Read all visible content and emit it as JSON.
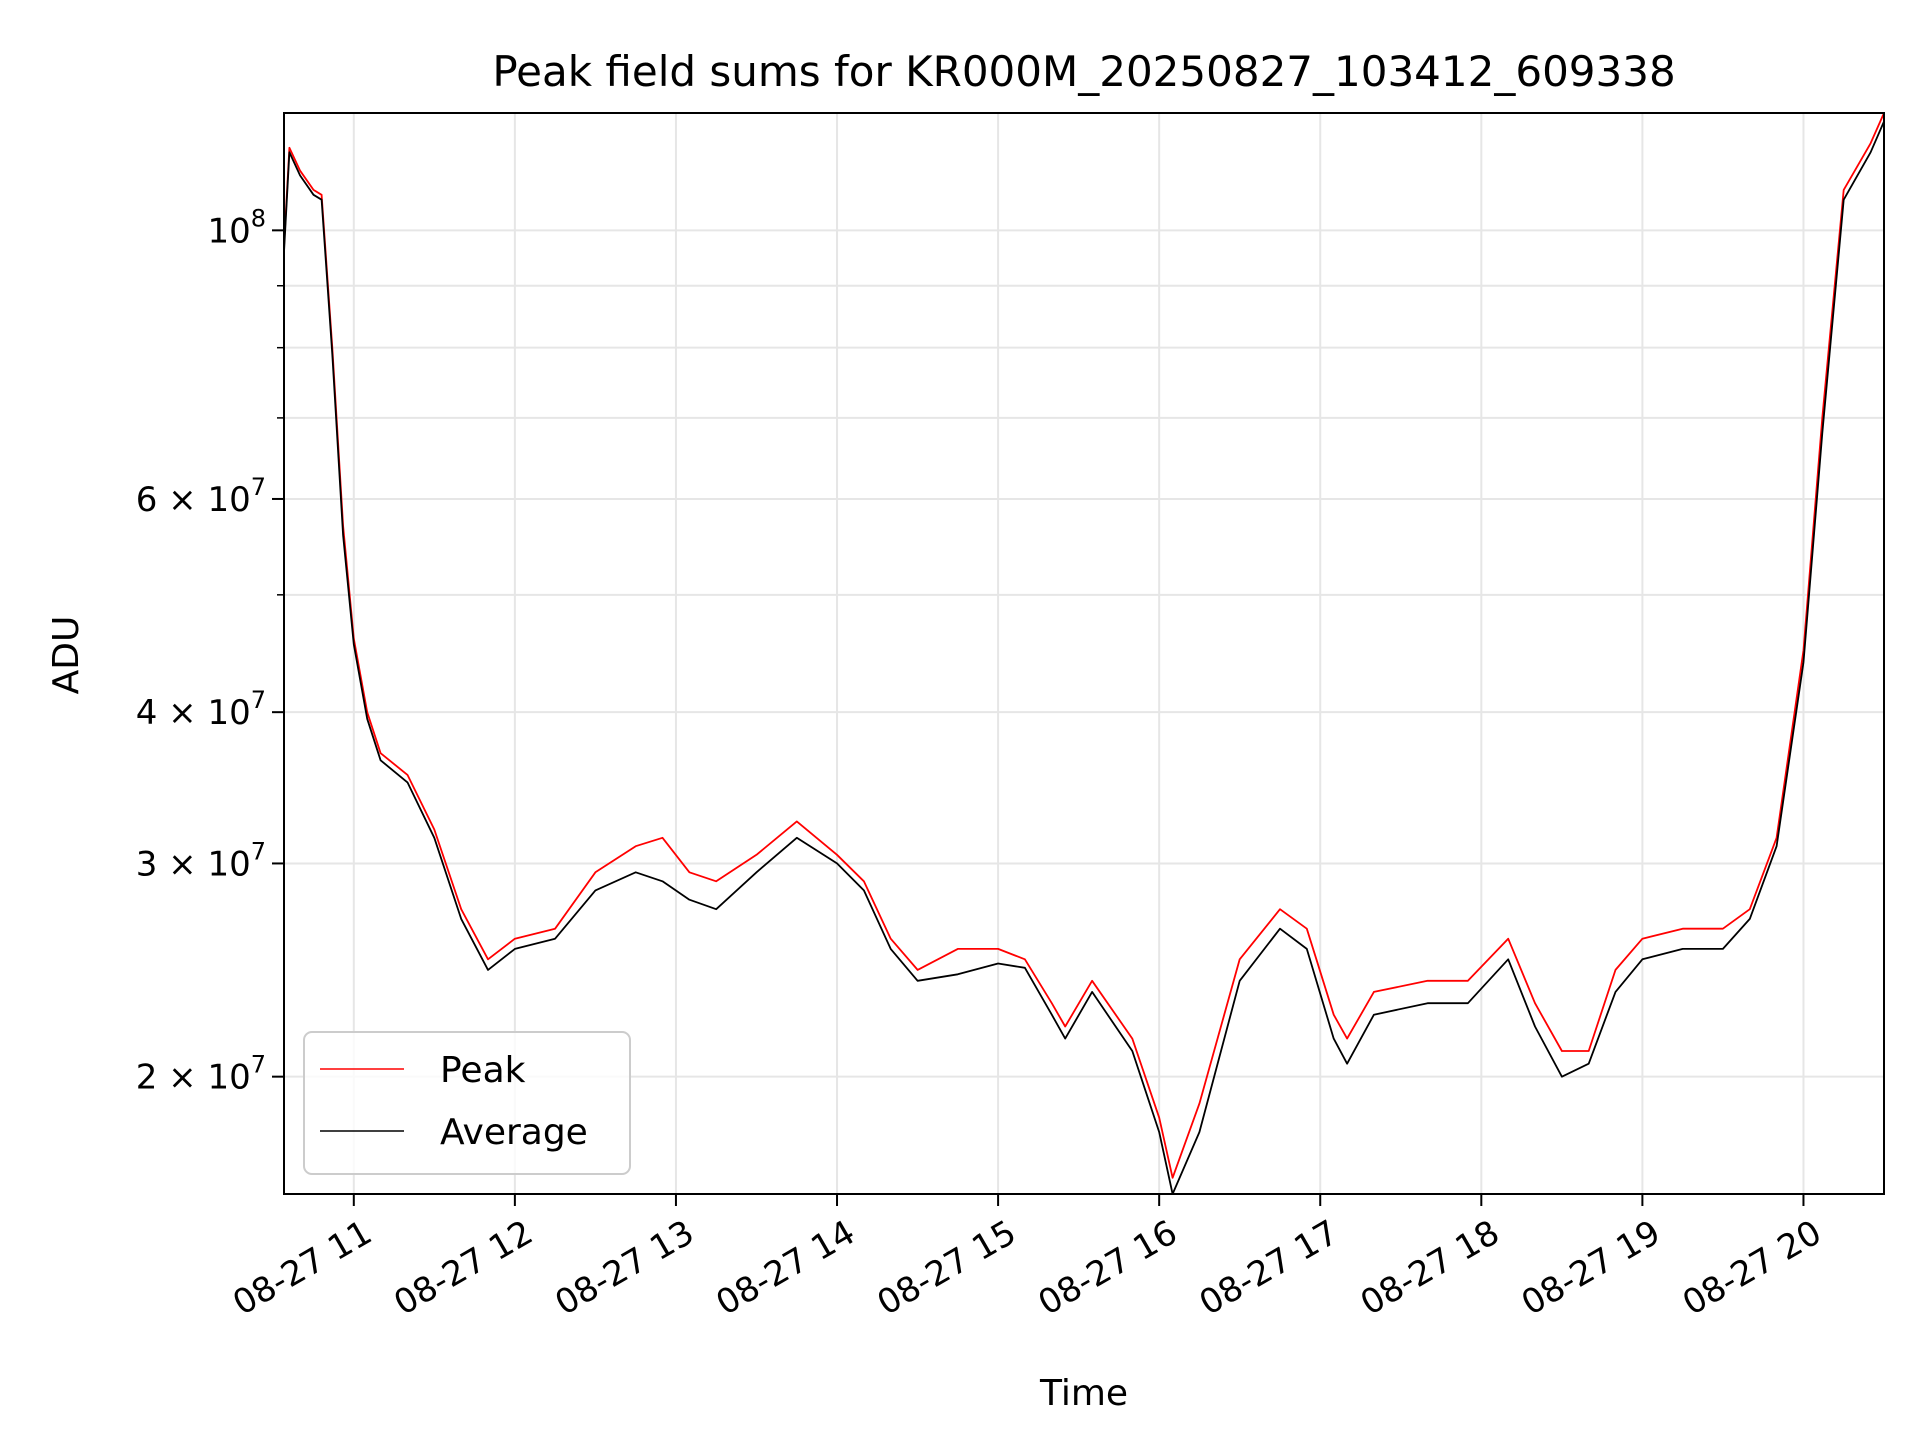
{
  "chart_data": {
    "type": "line",
    "title": "Peak field sums for KR000M_20250827_103412_609338",
    "xlabel": "Time",
    "ylabel": "ADU",
    "yscale": "log",
    "xlim": [
      "2025-08-27 10:34",
      "2025-08-27 20:30"
    ],
    "ylim": [
      16000000,
      125000000
    ],
    "grid": true,
    "legend_position": "lower-left",
    "x_ticks": [
      {
        "value": "2025-08-27 11:00",
        "label": "08-27 11"
      },
      {
        "value": "2025-08-27 12:00",
        "label": "08-27 12"
      },
      {
        "value": "2025-08-27 13:00",
        "label": "08-27 13"
      },
      {
        "value": "2025-08-27 14:00",
        "label": "08-27 14"
      },
      {
        "value": "2025-08-27 15:00",
        "label": "08-27 15"
      },
      {
        "value": "2025-08-27 16:00",
        "label": "08-27 16"
      },
      {
        "value": "2025-08-27 17:00",
        "label": "08-27 17"
      },
      {
        "value": "2025-08-27 18:00",
        "label": "08-27 18"
      },
      {
        "value": "2025-08-27 19:00",
        "label": "08-27 19"
      },
      {
        "value": "2025-08-27 20:00",
        "label": "08-27 20"
      }
    ],
    "y_ticks": [
      {
        "value": 20000000,
        "base": "2 × 10",
        "exp": "7"
      },
      {
        "value": 30000000,
        "base": "3 × 10",
        "exp": "7"
      },
      {
        "value": 40000000,
        "base": "4 × 10",
        "exp": "7"
      },
      {
        "value": 60000000,
        "base": "6 × 10",
        "exp": "7"
      },
      {
        "value": 100000000,
        "base": "10",
        "exp": "8"
      }
    ],
    "y_minor_ticks": [
      50000000,
      70000000,
      80000000,
      90000000
    ],
    "series": [
      {
        "name": "Peak",
        "color": "#ff0000",
        "points": [
          [
            "2025-08-27 10:34",
            97000000
          ],
          [
            "2025-08-27 10:36",
            117000000
          ],
          [
            "2025-08-27 10:40",
            112000000
          ],
          [
            "2025-08-27 10:45",
            108000000
          ],
          [
            "2025-08-27 10:48",
            107000000
          ],
          [
            "2025-08-27 10:52",
            80000000
          ],
          [
            "2025-08-27 10:56",
            57000000
          ],
          [
            "2025-08-27 11:00",
            46000000
          ],
          [
            "2025-08-27 11:05",
            40000000
          ],
          [
            "2025-08-27 11:10",
            37000000
          ],
          [
            "2025-08-27 11:20",
            35500000
          ],
          [
            "2025-08-27 11:30",
            32000000
          ],
          [
            "2025-08-27 11:40",
            27500000
          ],
          [
            "2025-08-27 11:50",
            25000000
          ],
          [
            "2025-08-27 12:00",
            26000000
          ],
          [
            "2025-08-27 12:15",
            26500000
          ],
          [
            "2025-08-27 12:30",
            29500000
          ],
          [
            "2025-08-27 12:45",
            31000000
          ],
          [
            "2025-08-27 12:55",
            31500000
          ],
          [
            "2025-08-27 13:05",
            29500000
          ],
          [
            "2025-08-27 13:15",
            29000000
          ],
          [
            "2025-08-27 13:30",
            30500000
          ],
          [
            "2025-08-27 13:45",
            32500000
          ],
          [
            "2025-08-27 14:00",
            30500000
          ],
          [
            "2025-08-27 14:10",
            29000000
          ],
          [
            "2025-08-27 14:20",
            26000000
          ],
          [
            "2025-08-27 14:30",
            24500000
          ],
          [
            "2025-08-27 14:45",
            25500000
          ],
          [
            "2025-08-27 15:00",
            25500000
          ],
          [
            "2025-08-27 15:10",
            25000000
          ],
          [
            "2025-08-27 15:20",
            23000000
          ],
          [
            "2025-08-27 15:25",
            22000000
          ],
          [
            "2025-08-27 15:35",
            24000000
          ],
          [
            "2025-08-27 15:50",
            21500000
          ],
          [
            "2025-08-27 16:00",
            18500000
          ],
          [
            "2025-08-27 16:05",
            16500000
          ],
          [
            "2025-08-27 16:15",
            19000000
          ],
          [
            "2025-08-27 16:30",
            25000000
          ],
          [
            "2025-08-27 16:45",
            27500000
          ],
          [
            "2025-08-27 16:55",
            26500000
          ],
          [
            "2025-08-27 17:05",
            22500000
          ],
          [
            "2025-08-27 17:10",
            21500000
          ],
          [
            "2025-08-27 17:20",
            23500000
          ],
          [
            "2025-08-27 17:40",
            24000000
          ],
          [
            "2025-08-27 17:55",
            24000000
          ],
          [
            "2025-08-27 18:10",
            26000000
          ],
          [
            "2025-08-27 18:20",
            23000000
          ],
          [
            "2025-08-27 18:30",
            21000000
          ],
          [
            "2025-08-27 18:40",
            21000000
          ],
          [
            "2025-08-27 18:50",
            24500000
          ],
          [
            "2025-08-27 19:00",
            26000000
          ],
          [
            "2025-08-27 19:15",
            26500000
          ],
          [
            "2025-08-27 19:30",
            26500000
          ],
          [
            "2025-08-27 19:40",
            27500000
          ],
          [
            "2025-08-27 19:50",
            31500000
          ],
          [
            "2025-08-27 20:00",
            45000000
          ],
          [
            "2025-08-27 20:07",
            70000000
          ],
          [
            "2025-08-27 20:15",
            108000000
          ],
          [
            "2025-08-27 20:25",
            118000000
          ],
          [
            "2025-08-27 20:30",
            125000000
          ]
        ]
      },
      {
        "name": "Average",
        "color": "#000000",
        "points": [
          [
            "2025-08-27 10:34",
            96000000
          ],
          [
            "2025-08-27 10:36",
            116000000
          ],
          [
            "2025-08-27 10:40",
            111000000
          ],
          [
            "2025-08-27 10:45",
            107000000
          ],
          [
            "2025-08-27 10:48",
            106000000
          ],
          [
            "2025-08-27 10:52",
            79000000
          ],
          [
            "2025-08-27 10:56",
            56000000
          ],
          [
            "2025-08-27 11:00",
            45500000
          ],
          [
            "2025-08-27 11:05",
            39500000
          ],
          [
            "2025-08-27 11:10",
            36500000
          ],
          [
            "2025-08-27 11:20",
            35000000
          ],
          [
            "2025-08-27 11:30",
            31500000
          ],
          [
            "2025-08-27 11:40",
            27000000
          ],
          [
            "2025-08-27 11:50",
            24500000
          ],
          [
            "2025-08-27 12:00",
            25500000
          ],
          [
            "2025-08-27 12:15",
            26000000
          ],
          [
            "2025-08-27 12:30",
            28500000
          ],
          [
            "2025-08-27 12:45",
            29500000
          ],
          [
            "2025-08-27 12:55",
            29000000
          ],
          [
            "2025-08-27 13:05",
            28000000
          ],
          [
            "2025-08-27 13:15",
            27500000
          ],
          [
            "2025-08-27 13:30",
            29500000
          ],
          [
            "2025-08-27 13:45",
            31500000
          ],
          [
            "2025-08-27 14:00",
            30000000
          ],
          [
            "2025-08-27 14:10",
            28500000
          ],
          [
            "2025-08-27 14:20",
            25500000
          ],
          [
            "2025-08-27 14:30",
            24000000
          ],
          [
            "2025-08-27 14:45",
            24300000
          ],
          [
            "2025-08-27 15:00",
            24800000
          ],
          [
            "2025-08-27 15:10",
            24600000
          ],
          [
            "2025-08-27 15:20",
            22500000
          ],
          [
            "2025-08-27 15:25",
            21500000
          ],
          [
            "2025-08-27 15:35",
            23500000
          ],
          [
            "2025-08-27 15:50",
            21000000
          ],
          [
            "2025-08-27 16:00",
            18000000
          ],
          [
            "2025-08-27 16:05",
            16000000
          ],
          [
            "2025-08-27 16:15",
            18000000
          ],
          [
            "2025-08-27 16:30",
            24000000
          ],
          [
            "2025-08-27 16:45",
            26500000
          ],
          [
            "2025-08-27 16:55",
            25500000
          ],
          [
            "2025-08-27 17:05",
            21500000
          ],
          [
            "2025-08-27 17:10",
            20500000
          ],
          [
            "2025-08-27 17:20",
            22500000
          ],
          [
            "2025-08-27 17:40",
            23000000
          ],
          [
            "2025-08-27 17:55",
            23000000
          ],
          [
            "2025-08-27 18:10",
            25000000
          ],
          [
            "2025-08-27 18:20",
            22000000
          ],
          [
            "2025-08-27 18:30",
            20000000
          ],
          [
            "2025-08-27 18:40",
            20500000
          ],
          [
            "2025-08-27 18:50",
            23500000
          ],
          [
            "2025-08-27 19:00",
            25000000
          ],
          [
            "2025-08-27 19:15",
            25500000
          ],
          [
            "2025-08-27 19:30",
            25500000
          ],
          [
            "2025-08-27 19:40",
            27000000
          ],
          [
            "2025-08-27 19:50",
            31000000
          ],
          [
            "2025-08-27 20:00",
            44000000
          ],
          [
            "2025-08-27 20:07",
            68000000
          ],
          [
            "2025-08-27 20:15",
            106000000
          ],
          [
            "2025-08-27 20:25",
            116000000
          ],
          [
            "2025-08-27 20:30",
            123000000
          ]
        ]
      }
    ]
  }
}
